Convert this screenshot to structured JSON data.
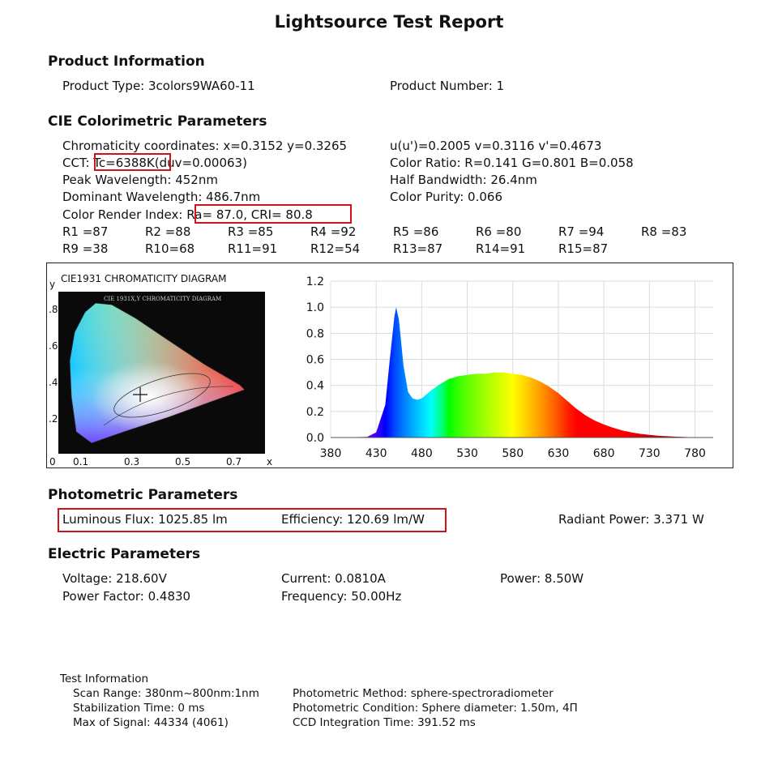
{
  "title": "Lightsource Test Report",
  "product": {
    "heading": "Product Information",
    "type": "Product Type: 3colors9WA60-11",
    "number": "Product Number: 1"
  },
  "cie": {
    "heading": "CIE Colorimetric Parameters",
    "chromaticity": "Chromaticity coordinates: x=0.3152 y=0.3265",
    "uv": "u(u')=0.2005 v=0.3116 v'=0.4673",
    "cct_label": "CCT: ",
    "cct_value": "Tc=6388K",
    "duv": "(duv=0.00063)",
    "color_ratio": "Color Ratio: R=0.141  G=0.801  B=0.058",
    "peak": "Peak Wavelength: 452nm",
    "half_bw": "Half Bandwidth: 26.4nm",
    "dominant": "Dominant Wavelength: 486.7nm",
    "purity": "Color Purity: 0.066",
    "cri_label": "Color Render Index: ",
    "cri_value": "Ra= 87.0, CRI= 80.8",
    "r_row1": [
      "R1 =87",
      "R2 =88",
      "R3 =85",
      "R4 =92",
      "R5 =86",
      "R6 =80",
      "R7 =94",
      "R8 =83"
    ],
    "r_row2": [
      "R9 =38",
      "R10=68",
      "R11=91",
      "R12=54",
      "R13=87",
      "R14=91",
      "R15=87"
    ]
  },
  "diagram": {
    "title": "CIE1931 CHROMATICITY DIAGRAM",
    "inner_title": "CIE 1931X,Y CHROMATICITY DIAGRAM",
    "y_axis": "y",
    "x_axis": "x",
    "y_ticks": [
      ".8",
      ".6",
      ".4",
      ".2"
    ],
    "x_ticks": [
      "0",
      "0.1",
      "0.3",
      "0.5",
      "0.7"
    ]
  },
  "chart_data": {
    "type": "area",
    "title": "",
    "xlabel": "",
    "ylabel": "",
    "xlim": [
      380,
      800
    ],
    "ylim": [
      0,
      1.2
    ],
    "x_ticks": [
      "380",
      "430",
      "480",
      "530",
      "580",
      "630",
      "680",
      "730",
      "780"
    ],
    "y_ticks": [
      "0.0",
      "0.2",
      "0.4",
      "0.6",
      "0.8",
      "1.0",
      "1.2"
    ],
    "grid": true,
    "series": [
      {
        "x": [
          380,
          420,
          430,
          440,
          445,
          450,
          452,
          455,
          460,
          465,
          470,
          475,
          480,
          490,
          500,
          510,
          520,
          530,
          540,
          550,
          560,
          570,
          580,
          590,
          600,
          610,
          620,
          630,
          640,
          650,
          660,
          670,
          680,
          690,
          700,
          710,
          720,
          730,
          740,
          760,
          780,
          800
        ],
        "values": [
          0,
          0.005,
          0.04,
          0.25,
          0.6,
          0.93,
          1.0,
          0.9,
          0.55,
          0.35,
          0.3,
          0.29,
          0.3,
          0.36,
          0.41,
          0.45,
          0.47,
          0.48,
          0.49,
          0.49,
          0.5,
          0.5,
          0.49,
          0.48,
          0.46,
          0.43,
          0.39,
          0.34,
          0.28,
          0.22,
          0.17,
          0.13,
          0.1,
          0.075,
          0.055,
          0.04,
          0.028,
          0.02,
          0.013,
          0.006,
          0.002,
          0
        ]
      }
    ]
  },
  "photometric": {
    "heading": "Photometric Parameters",
    "flux": "Luminous Flux: 1025.85 lm",
    "efficiency": "Efficiency: 120.69 lm/W",
    "radiant": "Radiant Power: 3.371 W"
  },
  "electric": {
    "heading": "Electric Parameters",
    "voltage": "Voltage: 218.60V",
    "current": "Current: 0.0810A",
    "power": "Power: 8.50W",
    "pf": "Power Factor: 0.4830",
    "freq": "Frequency: 50.00Hz"
  },
  "test": {
    "heading": "Test Information",
    "scan": "Scan Range: 380nm~800nm:1nm",
    "method": "Photometric Method: sphere-spectroradiometer",
    "stab": "Stabilization Time: 0 ms",
    "condition": "Photometric Condition: Sphere diameter: 1.50m, 4Π",
    "max": "Max of Signal: 44334 (4061)",
    "ccd": "CCD Integration Time: 391.52 ms"
  },
  "colors": {
    "highlight": "#d0121b"
  }
}
